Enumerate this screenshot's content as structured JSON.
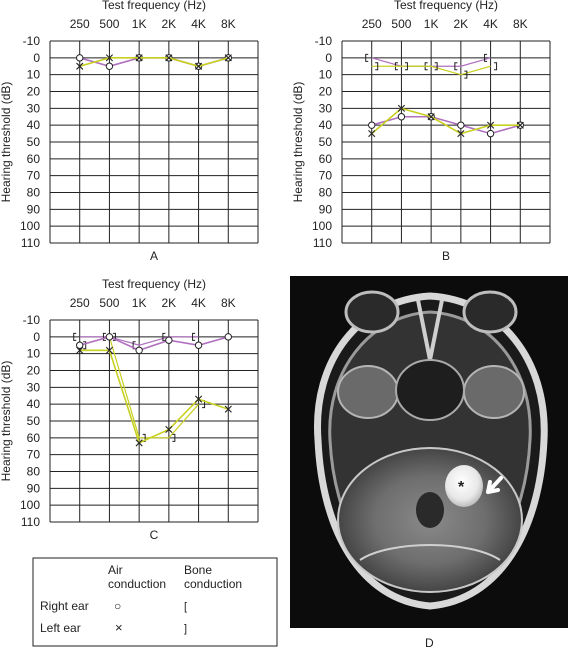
{
  "chart_data": [
    {
      "type": "line",
      "panel_label": "A",
      "title": "Test frequency (Hz)",
      "ylabel": "Hearing threshold (dB)",
      "x_ticks": [
        "250",
        "500",
        "1K",
        "2K",
        "4K",
        "8K"
      ],
      "y_ticks": [
        "-10",
        "0",
        "10",
        "20",
        "30",
        "40",
        "50",
        "60",
        "70",
        "80",
        "90",
        "100",
        "110"
      ],
      "ylim": [
        -10,
        110
      ],
      "y_inverted": true,
      "grid": true,
      "series": [
        {
          "ear": "right",
          "conduction": "air",
          "marker": "circle",
          "color": "#b070c0",
          "values": [
            0,
            5,
            0,
            0,
            5,
            0
          ]
        },
        {
          "ear": "left",
          "conduction": "air",
          "marker": "x",
          "color": "#c8d020",
          "values": [
            5,
            0,
            0,
            0,
            5,
            0
          ]
        }
      ]
    },
    {
      "type": "line",
      "panel_label": "B",
      "title": "Test frequency (Hz)",
      "ylabel": "Hearing threshold (dB)",
      "x_ticks": [
        "250",
        "500",
        "1K",
        "2K",
        "4K",
        "8K"
      ],
      "y_ticks": [
        "-10",
        "0",
        "10",
        "20",
        "30",
        "40",
        "50",
        "60",
        "70",
        "80",
        "90",
        "100",
        "110"
      ],
      "ylim": [
        -10,
        110
      ],
      "y_inverted": true,
      "grid": true,
      "series": [
        {
          "ear": "right",
          "conduction": "bone",
          "marker": "bracket-left",
          "color": "#b070c0",
          "values": [
            0,
            5,
            5,
            5,
            0,
            null
          ]
        },
        {
          "ear": "left",
          "conduction": "bone",
          "marker": "bracket-right",
          "color": "#c8d020",
          "values": [
            5,
            5,
            5,
            10,
            5,
            null
          ]
        },
        {
          "ear": "right",
          "conduction": "air",
          "marker": "circle",
          "color": "#b070c0",
          "values": [
            40,
            35,
            35,
            40,
            45,
            40
          ]
        },
        {
          "ear": "left",
          "conduction": "air",
          "marker": "x",
          "color": "#c8d020",
          "values": [
            45,
            30,
            35,
            45,
            40,
            40
          ]
        }
      ]
    },
    {
      "type": "line",
      "panel_label": "C",
      "title": "Test frequency (Hz)",
      "ylabel": "Hearing threshold (dB)",
      "x_ticks": [
        "250",
        "500",
        "1K",
        "2K",
        "4K",
        "8K"
      ],
      "y_ticks": [
        "-10",
        "0",
        "10",
        "20",
        "30",
        "40",
        "50",
        "60",
        "70",
        "80",
        "90",
        "100",
        "110"
      ],
      "ylim": [
        -10,
        110
      ],
      "y_inverted": true,
      "grid": true,
      "series": [
        {
          "ear": "right",
          "conduction": "bone",
          "marker": "bracket-left",
          "color": "#b070c0",
          "values": [
            0,
            0,
            5,
            0,
            0,
            null
          ]
        },
        {
          "ear": "left",
          "conduction": "bone",
          "marker": "bracket-right",
          "color": "#c8d020",
          "values": [
            5,
            0,
            60,
            60,
            40,
            null
          ]
        },
        {
          "ear": "right",
          "conduction": "air",
          "marker": "circle",
          "color": "#b070c0",
          "values": [
            5,
            0,
            8,
            2,
            5,
            0
          ]
        },
        {
          "ear": "left",
          "conduction": "air",
          "marker": "x",
          "color": "#c8d020",
          "values": [
            8,
            8,
            63,
            55,
            37,
            43
          ]
        }
      ]
    }
  ],
  "legend": {
    "header_air": [
      "Air",
      "conduction"
    ],
    "header_bone": [
      "Bone",
      "conduction"
    ],
    "right_ear": "Right ear",
    "left_ear": "Left ear",
    "air_right_symbol": "○",
    "air_left_symbol": "×",
    "bone_right_symbol": "[",
    "bone_left_symbol": "]"
  },
  "image_panel": {
    "label": "D",
    "annotation": "*"
  },
  "colors": {
    "right_ear": "#b070c0",
    "left_ear": "#c8d020",
    "grid": "#222222"
  }
}
